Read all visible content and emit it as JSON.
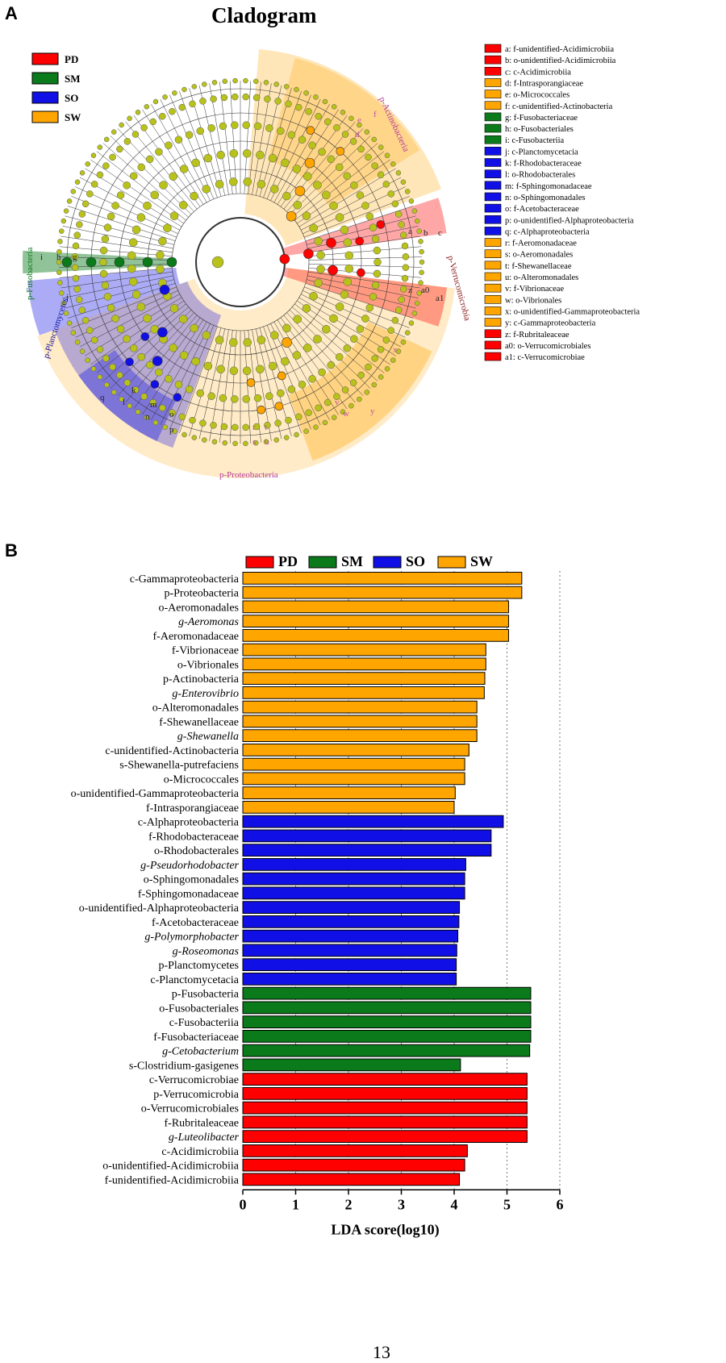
{
  "panels": {
    "a": "A",
    "b": "B"
  },
  "page_number": "13",
  "colors": {
    "PD": "#ff0000",
    "SM": "#0a7a1a",
    "SO": "#1010e6",
    "SW": "#ffa500",
    "node": "#b8c21a"
  },
  "chart_data": [
    {
      "type": "cladogram",
      "title": "Cladogram",
      "legend": [
        {
          "group": "PD",
          "color": "#ff0000"
        },
        {
          "group": "SM",
          "color": "#0a7a1a"
        },
        {
          "group": "SO",
          "color": "#1010e6"
        },
        {
          "group": "SW",
          "color": "#ffa500"
        }
      ],
      "clade_labels": [
        {
          "text": "p-Actinobacteria",
          "group": "SW"
        },
        {
          "text": "p-Verrucomicrobia",
          "group": "PD"
        },
        {
          "text": "p-Proteobacteria",
          "group": "SW"
        },
        {
          "text": "p-Planctomycetes",
          "group": "SO"
        },
        {
          "text": "p-Fusobacteria",
          "group": "SM"
        }
      ],
      "node_letters": [
        {
          "letter": "a",
          "group": "PD"
        },
        {
          "letter": "b",
          "group": "PD"
        },
        {
          "letter": "c",
          "group": "PD"
        },
        {
          "letter": "d",
          "group": "SW"
        },
        {
          "letter": "e",
          "group": "SW"
        },
        {
          "letter": "f",
          "group": "SW"
        },
        {
          "letter": "g",
          "group": "SM"
        },
        {
          "letter": "h",
          "group": "SM"
        },
        {
          "letter": "i",
          "group": "SM"
        },
        {
          "letter": "j",
          "group": "SO"
        },
        {
          "letter": "k",
          "group": "SO"
        },
        {
          "letter": "l",
          "group": "SO"
        },
        {
          "letter": "m",
          "group": "SO"
        },
        {
          "letter": "n",
          "group": "SO"
        },
        {
          "letter": "o",
          "group": "SO"
        },
        {
          "letter": "p",
          "group": "SO"
        },
        {
          "letter": "q",
          "group": "SO"
        },
        {
          "letter": "r",
          "group": "SW"
        },
        {
          "letter": "s",
          "group": "SW"
        },
        {
          "letter": "t",
          "group": "SW"
        },
        {
          "letter": "u",
          "group": "SW"
        },
        {
          "letter": "v",
          "group": "SW"
        },
        {
          "letter": "w",
          "group": "SW"
        },
        {
          "letter": "x",
          "group": "SW"
        },
        {
          "letter": "y",
          "group": "SW"
        },
        {
          "letter": "z",
          "group": "PD"
        },
        {
          "letter": "a0",
          "group": "PD"
        },
        {
          "letter": "a1",
          "group": "PD"
        }
      ],
      "key": [
        {
          "label": "a: f-unidentified-Acidimicrobiia",
          "group": "PD"
        },
        {
          "label": "b: o-unidentified-Acidimicrobiia",
          "group": "PD"
        },
        {
          "label": "c: c-Acidimicrobiia",
          "group": "PD"
        },
        {
          "label": "d: f-Intrasporangiaceae",
          "group": "SW"
        },
        {
          "label": "e: o-Micrococcales",
          "group": "SW"
        },
        {
          "label": "f: c-unidentified-Actinobacteria",
          "group": "SW"
        },
        {
          "label": "g: f-Fusobacteriaceae",
          "group": "SM"
        },
        {
          "label": "h: o-Fusobacteriales",
          "group": "SM"
        },
        {
          "label": "i: c-Fusobacteriia",
          "group": "SM"
        },
        {
          "label": "j: c-Planctomycetacia",
          "group": "SO"
        },
        {
          "label": "k: f-Rhodobacteraceae",
          "group": "SO"
        },
        {
          "label": "l: o-Rhodobacterales",
          "group": "SO"
        },
        {
          "label": "m: f-Sphingomonadaceae",
          "group": "SO"
        },
        {
          "label": "n: o-Sphingomonadales",
          "group": "SO"
        },
        {
          "label": "o: f-Acetobacteraceae",
          "group": "SO"
        },
        {
          "label": "p: o-unidentified-Alphaproteobacteria",
          "group": "SO"
        },
        {
          "label": "q: c-Alphaproteobacteria",
          "group": "SO"
        },
        {
          "label": "r: f-Aeromonadaceae",
          "group": "SW"
        },
        {
          "label": "s: o-Aeromonadales",
          "group": "SW"
        },
        {
          "label": "t: f-Shewanellaceae",
          "group": "SW"
        },
        {
          "label": "u: o-Alteromonadales",
          "group": "SW"
        },
        {
          "label": "v: f-Vibrionaceae",
          "group": "SW"
        },
        {
          "label": "w: o-Vibrionales",
          "group": "SW"
        },
        {
          "label": "x: o-unidentified-Gammaproteobacteria",
          "group": "SW"
        },
        {
          "label": "y: c-Gammaproteobacteria",
          "group": "SW"
        },
        {
          "label": "z: f-Rubritaleaceae",
          "group": "PD"
        },
        {
          "label": "a0: o-Verrucomicrobiales",
          "group": "PD"
        },
        {
          "label": "a1: c-Verrucomicrobiae",
          "group": "PD"
        }
      ]
    },
    {
      "type": "bar",
      "orientation": "horizontal",
      "title": "",
      "xlabel": "LDA score(log10)",
      "ylabel": "",
      "xlim": [
        0,
        6
      ],
      "xticks": [
        "0",
        "1",
        "2",
        "3",
        "4",
        "5",
        "6"
      ],
      "grid": "vertical dotted",
      "legend": [
        "PD",
        "SM",
        "SO",
        "SW"
      ],
      "categories": [
        {
          "label": "c-Gammaproteobacteria",
          "group": "SW",
          "value": 5.28,
          "italic": false
        },
        {
          "label": "p-Proteobacteria",
          "group": "SW",
          "value": 5.28,
          "italic": false
        },
        {
          "label": "o-Aeromonadales",
          "group": "SW",
          "value": 5.03,
          "italic": false
        },
        {
          "label": "g-Aeromonas",
          "group": "SW",
          "value": 5.03,
          "italic": true
        },
        {
          "label": "f-Aeromonadaceae",
          "group": "SW",
          "value": 5.03,
          "italic": false
        },
        {
          "label": "f-Vibrionaceae",
          "group": "SW",
          "value": 4.6,
          "italic": false
        },
        {
          "label": "o-Vibrionales",
          "group": "SW",
          "value": 4.6,
          "italic": false
        },
        {
          "label": "p-Actinobacteria",
          "group": "SW",
          "value": 4.58,
          "italic": false
        },
        {
          "label": "g-Enterovibrio",
          "group": "SW",
          "value": 4.57,
          "italic": true
        },
        {
          "label": "o-Alteromonadales",
          "group": "SW",
          "value": 4.43,
          "italic": false
        },
        {
          "label": "f-Shewanellaceae",
          "group": "SW",
          "value": 4.43,
          "italic": false
        },
        {
          "label": "g-Shewanella",
          "group": "SW",
          "value": 4.43,
          "italic": true
        },
        {
          "label": "c-unidentified-Actinobacteria",
          "group": "SW",
          "value": 4.28,
          "italic": false
        },
        {
          "label": "s-Shewanella-putrefaciens",
          "group": "SW",
          "value": 4.2,
          "italic": false
        },
        {
          "label": "o-Micrococcales",
          "group": "SW",
          "value": 4.2,
          "italic": false
        },
        {
          "label": "o-unidentified-Gammaproteobacteria",
          "group": "SW",
          "value": 4.02,
          "italic": false
        },
        {
          "label": "f-Intrasporangiaceae",
          "group": "SW",
          "value": 4.0,
          "italic": false
        },
        {
          "label": "c-Alphaproteobacteria",
          "group": "SO",
          "value": 4.93,
          "italic": false
        },
        {
          "label": "f-Rhodobacteraceae",
          "group": "SO",
          "value": 4.7,
          "italic": false
        },
        {
          "label": "o-Rhodobacterales",
          "group": "SO",
          "value": 4.7,
          "italic": false
        },
        {
          "label": "g-Pseudorhodobacter",
          "group": "SO",
          "value": 4.22,
          "italic": true
        },
        {
          "label": "o-Sphingomonadales",
          "group": "SO",
          "value": 4.2,
          "italic": false
        },
        {
          "label": "f-Sphingomonadaceae",
          "group": "SO",
          "value": 4.2,
          "italic": false
        },
        {
          "label": "o-unidentified-Alphaproteobacteria",
          "group": "SO",
          "value": 4.1,
          "italic": false
        },
        {
          "label": "f-Acetobacteraceae",
          "group": "SO",
          "value": 4.09,
          "italic": false
        },
        {
          "label": "g-Polymorphobacter",
          "group": "SO",
          "value": 4.07,
          "italic": true
        },
        {
          "label": "g-Roseomonas",
          "group": "SO",
          "value": 4.05,
          "italic": true
        },
        {
          "label": "p-Planctomycetes",
          "group": "SO",
          "value": 4.04,
          "italic": false
        },
        {
          "label": "c-Planctomycetacia",
          "group": "SO",
          "value": 4.04,
          "italic": false
        },
        {
          "label": "p-Fusobacteria",
          "group": "SM",
          "value": 5.45,
          "italic": false
        },
        {
          "label": "o-Fusobacteriales",
          "group": "SM",
          "value": 5.45,
          "italic": false
        },
        {
          "label": "c-Fusobacteriia",
          "group": "SM",
          "value": 5.45,
          "italic": false
        },
        {
          "label": "f-Fusobacteriaceae",
          "group": "SM",
          "value": 5.45,
          "italic": false
        },
        {
          "label": "g-Cetobacterium",
          "group": "SM",
          "value": 5.43,
          "italic": true
        },
        {
          "label": "s-Clostridium-gasigenes",
          "group": "SM",
          "value": 4.12,
          "italic": false
        },
        {
          "label": "c-Verrucomicrobiae",
          "group": "PD",
          "value": 5.38,
          "italic": false
        },
        {
          "label": "p-Verrucomicrobia",
          "group": "PD",
          "value": 5.38,
          "italic": false
        },
        {
          "label": "o-Verrucomicrobiales",
          "group": "PD",
          "value": 5.38,
          "italic": false
        },
        {
          "label": "f-Rubritaleaceae",
          "group": "PD",
          "value": 5.38,
          "italic": false
        },
        {
          "label": "g-Luteolibacter",
          "group": "PD",
          "value": 5.38,
          "italic": true
        },
        {
          "label": "c-Acidimicrobiia",
          "group": "PD",
          "value": 4.25,
          "italic": false
        },
        {
          "label": "o-unidentified-Acidimicrobiia",
          "group": "PD",
          "value": 4.2,
          "italic": false
        },
        {
          "label": "f-unidentified-Acidimicrobiia",
          "group": "PD",
          "value": 4.1,
          "italic": false
        }
      ]
    }
  ]
}
